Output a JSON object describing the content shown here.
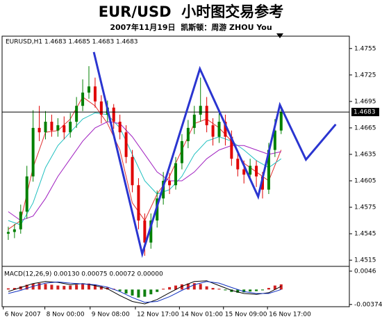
{
  "chart_data": [
    {
      "type": "candlestick",
      "title": "EUR/USD  小时图交易参考",
      "subtitle": "2007年11月19日  凯斯顿：周游 ZHOU You",
      "label": "EURUSD,H1 1.4683 1.4685 1.4683 1.4683",
      "x": [
        0,
        1,
        2,
        3,
        4,
        5,
        6,
        7,
        8,
        9,
        10,
        11,
        12,
        13,
        14,
        15,
        16,
        17,
        18,
        19,
        20,
        21,
        22,
        23,
        24,
        25,
        26,
        27,
        28,
        29,
        30,
        31,
        32,
        33,
        34,
        35,
        36,
        37,
        38,
        39,
        40,
        41,
        42,
        43,
        44
      ],
      "open": [
        1.4545,
        1.4547,
        1.455,
        1.457,
        1.461,
        1.4665,
        1.466,
        1.4672,
        1.4662,
        1.4668,
        1.466,
        1.4672,
        1.469,
        1.4705,
        1.4712,
        1.4695,
        1.468,
        1.4688,
        1.4672,
        1.466,
        1.4632,
        1.46,
        1.456,
        1.4535,
        1.456,
        1.4585,
        1.4605,
        1.46,
        1.4625,
        1.465,
        1.4665,
        1.468,
        1.469,
        1.4668,
        1.4655,
        1.4672,
        1.4655,
        1.463,
        1.4618,
        1.4612,
        1.4622,
        1.461,
        1.4595,
        1.464,
        1.4662
      ],
      "high": [
        1.4553,
        1.4556,
        1.4578,
        1.4622,
        1.4685,
        1.469,
        1.4684,
        1.468,
        1.4676,
        1.4678,
        1.4682,
        1.47,
        1.472,
        1.4735,
        1.4722,
        1.4702,
        1.4696,
        1.4692,
        1.468,
        1.4668,
        1.464,
        1.4608,
        1.4568,
        1.4568,
        1.4594,
        1.4615,
        1.4614,
        1.4632,
        1.4658,
        1.4674,
        1.469,
        1.4722,
        1.47,
        1.4676,
        1.4682,
        1.468,
        1.4662,
        1.4638,
        1.4628,
        1.463,
        1.4628,
        1.4615,
        1.4648,
        1.4675,
        1.469
      ],
      "low": [
        1.4538,
        1.454,
        1.4545,
        1.4562,
        1.4604,
        1.465,
        1.4652,
        1.4655,
        1.4655,
        1.4652,
        1.4654,
        1.4665,
        1.4684,
        1.4698,
        1.4688,
        1.467,
        1.4672,
        1.4664,
        1.4652,
        1.4625,
        1.4592,
        1.455,
        1.452,
        1.4528,
        1.4552,
        1.4578,
        1.459,
        1.4595,
        1.4618,
        1.4642,
        1.4658,
        1.4672,
        1.466,
        1.4645,
        1.4648,
        1.4645,
        1.4622,
        1.461,
        1.4602,
        1.4605,
        1.4598,
        1.4585,
        1.459,
        1.4632,
        1.4658
      ],
      "close": [
        1.4547,
        1.455,
        1.457,
        1.461,
        1.4665,
        1.466,
        1.4672,
        1.4662,
        1.4668,
        1.466,
        1.4672,
        1.469,
        1.4705,
        1.4712,
        1.4695,
        1.468,
        1.4688,
        1.4672,
        1.466,
        1.4632,
        1.46,
        1.456,
        1.4535,
        1.456,
        1.4585,
        1.4605,
        1.46,
        1.4625,
        1.465,
        1.4665,
        1.468,
        1.469,
        1.4668,
        1.4655,
        1.4672,
        1.4655,
        1.463,
        1.4618,
        1.4612,
        1.4622,
        1.461,
        1.4595,
        1.464,
        1.4662,
        1.4683
      ],
      "up_color": "#008000",
      "down_color": "#e00000",
      "lines": [
        {
          "color": "#e03030",
          "x": [
            0,
            2,
            4,
            6,
            8,
            10,
            12,
            14,
            16,
            18,
            20,
            22,
            24,
            26,
            28,
            30,
            32,
            34,
            36,
            38,
            40,
            42,
            44
          ],
          "values": [
            1.455,
            1.456,
            1.462,
            1.466,
            1.4662,
            1.4675,
            1.47,
            1.469,
            1.467,
            1.464,
            1.458,
            1.456,
            1.459,
            1.461,
            1.464,
            1.467,
            1.4675,
            1.4665,
            1.465,
            1.4625,
            1.4615,
            1.4605,
            1.464
          ]
        },
        {
          "color": "#20c0c0",
          "x": [
            0,
            2,
            4,
            6,
            8,
            10,
            12,
            14,
            16,
            18,
            20,
            22,
            24,
            26,
            28,
            30,
            32,
            34,
            36,
            38,
            40,
            42,
            44
          ],
          "values": [
            1.456,
            1.4555,
            1.458,
            1.462,
            1.4645,
            1.466,
            1.4675,
            1.4682,
            1.468,
            1.4665,
            1.4635,
            1.4605,
            1.459,
            1.4595,
            1.461,
            1.4635,
            1.465,
            1.4655,
            1.465,
            1.464,
            1.4628,
            1.462,
            1.463
          ]
        },
        {
          "color": "#a020c0",
          "x": [
            0,
            2,
            4,
            6,
            8,
            10,
            12,
            14,
            16,
            18,
            20,
            22,
            24,
            26,
            28,
            30,
            32,
            34,
            36,
            38,
            40,
            42,
            44
          ],
          "values": [
            1.457,
            1.456,
            1.4565,
            1.4585,
            1.461,
            1.463,
            1.465,
            1.4665,
            1.4672,
            1.467,
            1.4655,
            1.4635,
            1.4615,
            1.4605,
            1.4605,
            1.4615,
            1.463,
            1.464,
            1.4645,
            1.4645,
            1.464,
            1.4635,
            1.4638
          ]
        }
      ],
      "annotation_line": {
        "color": "#2a35d0",
        "x": [
          13.8,
          21.6,
          30.9,
          40.3,
          43.8,
          48.0,
          52.8
        ],
        "values": [
          1.4751,
          1.4522,
          1.4732,
          1.4587,
          1.4691,
          1.4629,
          1.4669
        ]
      },
      "current_price": 1.4683,
      "xlim": [
        -1,
        55
      ],
      "ylim": [
        1.4508,
        1.4769
      ],
      "yticks": [
        1.4755,
        1.4725,
        1.4695,
        1.4665,
        1.4635,
        1.4605,
        1.4575,
        1.4545,
        1.4515
      ],
      "xticks": [
        {
          "value": -0.8,
          "label": "6 Nov 2007"
        },
        {
          "value": 5.9,
          "label": "8 Nov 00:00"
        },
        {
          "value": 13.2,
          "label": "9 Nov 08:00"
        },
        {
          "value": 20.5,
          "label": "12 Nov 17:00"
        },
        {
          "value": 27.6,
          "label": "14 Nov 01:00"
        },
        {
          "value": 34.7,
          "label": "15 Nov 09:00"
        },
        {
          "value": 41.8,
          "label": "16 Nov 17:00"
        }
      ]
    },
    {
      "type": "bar",
      "label": "MACD(12,26,9) 0.00130 0.00075 0.00072 0.00000",
      "x": [
        0,
        1,
        2,
        3,
        4,
        5,
        6,
        7,
        8,
        9,
        10,
        11,
        12,
        13,
        14,
        15,
        16,
        17,
        18,
        19,
        20,
        21,
        22,
        23,
        24,
        25,
        26,
        27,
        28,
        29,
        30,
        31,
        32,
        33,
        34,
        35,
        36,
        37,
        38,
        39,
        40,
        41,
        42,
        43,
        44
      ],
      "values": [
        0.0003,
        0.0004,
        0.0008,
        0.0012,
        0.0015,
        0.0016,
        0.0014,
        0.0012,
        0.001,
        0.0009,
        0.001,
        0.0012,
        0.0014,
        0.0015,
        0.0012,
        0.0008,
        0.0005,
        0.0002,
        -0.0004,
        -0.001,
        -0.0015,
        -0.002,
        -0.0018,
        -0.0012,
        -0.0006,
        0.0002,
        0.0006,
        0.001,
        0.0013,
        0.0015,
        0.0016,
        0.0014,
        0.0008,
        0.0004,
        0.0002,
        -0.0002,
        -0.0006,
        -0.0008,
        -0.0007,
        -0.0005,
        -0.0004,
        -0.0002,
        0.0004,
        0.001,
        0.0013
      ],
      "pos_color": "#d02020",
      "neg_color": "#108010",
      "lines": [
        {
          "color": "#000000",
          "x": [
            0,
            2,
            4,
            6,
            8,
            10,
            12,
            14,
            16,
            18,
            20,
            22,
            24,
            26,
            28,
            30,
            32,
            34,
            36,
            38,
            40,
            42,
            44
          ],
          "values": [
            -0.0005,
            0.0005,
            0.0015,
            0.002,
            0.0018,
            0.0012,
            0.0015,
            0.001,
            0.0002,
            -0.0015,
            -0.003,
            -0.0036,
            -0.0025,
            -0.0008,
            0.0008,
            0.002,
            0.0022,
            0.001,
            -0.0002,
            -0.001,
            -0.0012,
            -0.0008,
            0.0008
          ]
        },
        {
          "color": "#1030c0",
          "x": [
            0,
            2,
            4,
            6,
            8,
            10,
            12,
            14,
            16,
            18,
            20,
            22,
            24,
            26,
            28,
            30,
            32,
            34,
            36,
            38,
            40,
            42,
            44
          ],
          "values": [
            -0.001,
            -0.0002,
            0.0008,
            0.0016,
            0.0019,
            0.0016,
            0.0014,
            0.0012,
            0.0006,
            -0.0005,
            -0.002,
            -0.0032,
            -0.003,
            -0.0018,
            -0.0002,
            0.0012,
            0.002,
            0.0016,
            0.0005,
            -0.0005,
            -0.001,
            -0.001,
            0.0
          ]
        }
      ],
      "xlim": [
        -1,
        55
      ],
      "ylim": [
        -0.0043,
        0.0058
      ],
      "yticks": [
        0.0046,
        -0.00374
      ]
    }
  ]
}
